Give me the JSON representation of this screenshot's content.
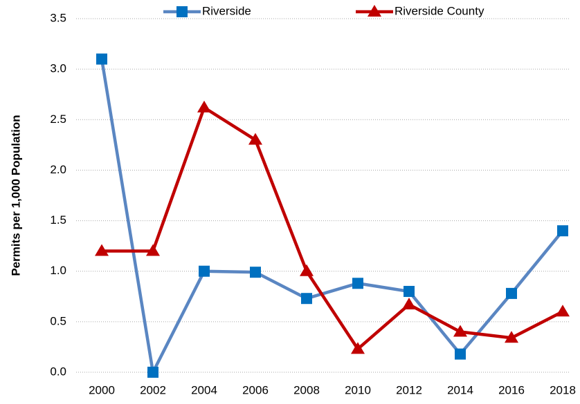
{
  "chart_data": {
    "type": "line",
    "y_label": "Permits per 1,000 Population",
    "categories": [
      "2000",
      "2002",
      "2004",
      "2006",
      "2008",
      "2010",
      "2012",
      "2014",
      "2016",
      "2018"
    ],
    "series": [
      {
        "name": "Riverside",
        "color": "#5a86c2",
        "marker_color": "#0070c0",
        "marker": "square",
        "values": [
          3.1,
          0.0,
          1.0,
          0.99,
          0.73,
          0.88,
          0.8,
          0.18,
          0.78,
          1.4
        ]
      },
      {
        "name": "Riverside County",
        "color": "#c00000",
        "marker_color": "#c00000",
        "marker": "triangle",
        "values": [
          1.2,
          1.2,
          2.62,
          2.3,
          1.0,
          0.23,
          0.67,
          0.4,
          0.34,
          0.6
        ]
      }
    ],
    "ylim": [
      0,
      3.5
    ],
    "yticks": [
      {
        "value": 0,
        "label": "0.0"
      },
      0.5,
      {
        "value": 1,
        "label": "1.0"
      },
      1.5,
      {
        "value": 2,
        "label": "2.0"
      },
      2.5,
      {
        "value": 3,
        "label": "3.0"
      },
      3.5
    ],
    "grid": true,
    "legend": "top"
  }
}
